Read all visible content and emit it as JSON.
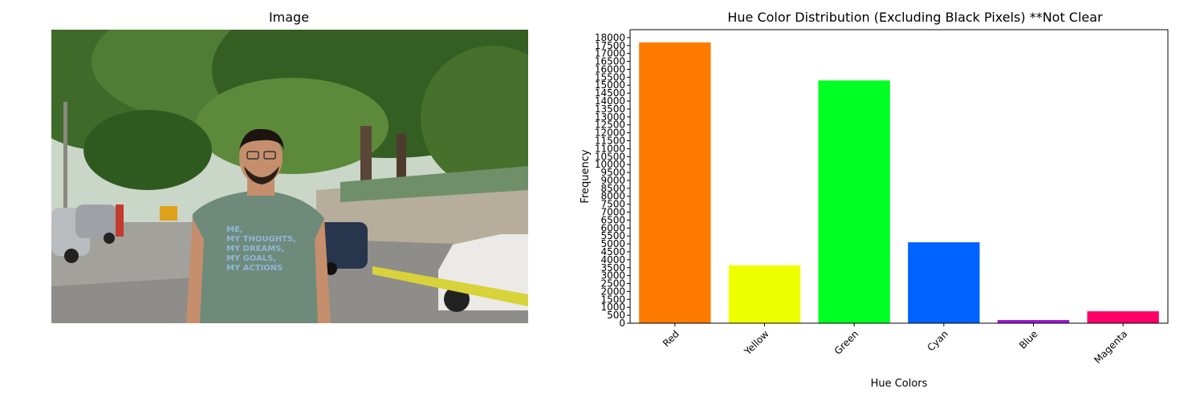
{
  "panels": {
    "image_title": "Image",
    "chart_title": "Hue Color Distribution (Excluding Black Pixels) **Not Clear"
  },
  "photo": {
    "shirt_lines": [
      "ME,",
      "MY THOUGHTS,",
      "MY DREAMS,",
      "MY GOALS,",
      "MY ACTIONS"
    ]
  },
  "chart_data": {
    "type": "bar",
    "title": "Hue Color Distribution (Excluding Black Pixels) **Not Clear",
    "xlabel": "Hue Colors",
    "ylabel": "Frequency",
    "categories": [
      "Red",
      "Yellow",
      "Green",
      "Cyan",
      "Blue",
      "Magenta"
    ],
    "values": [
      17700,
      3650,
      15300,
      5100,
      200,
      750
    ],
    "colors": [
      "#ff7b00",
      "#eeff00",
      "#00ff22",
      "#0062ff",
      "#9d17d6",
      "#ff0066"
    ],
    "ylim": [
      0,
      18500
    ],
    "ytick_step": 500,
    "yticks_max": 18000,
    "grid": false,
    "legend": "none"
  }
}
